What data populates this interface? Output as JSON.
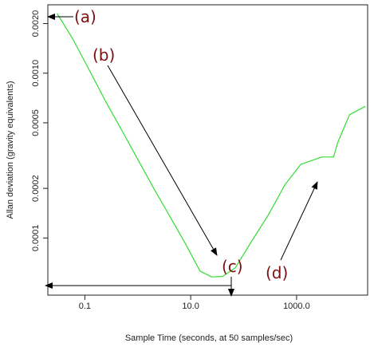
{
  "chart_data": {
    "type": "line",
    "title": "",
    "xlabel": "Sample Time (seconds, at 50 samples/sec)",
    "ylabel": "Allan deviation (gravity equivalents)",
    "x_scale": "log",
    "y_scale": "log",
    "xlim": [
      0.02,
      22000
    ],
    "ylim": [
      4.5e-05,
      0.0026
    ],
    "grid": false,
    "legend": "none",
    "x_ticks": [
      {
        "value": 0.1,
        "label": "0.1"
      },
      {
        "value": 10,
        "label": "10.0"
      },
      {
        "value": 1000,
        "label": "1000.0"
      }
    ],
    "y_ticks": [
      {
        "value": 0.0001,
        "label": "0.0001"
      },
      {
        "value": 0.0002,
        "label": "0.0002"
      },
      {
        "value": 0.0005,
        "label": "0.0005"
      },
      {
        "value": 0.001,
        "label": "0.0010"
      },
      {
        "value": 0.002,
        "label": "0.0020"
      }
    ],
    "series": [
      {
        "color": "#33dd33",
        "x": [
          0.03,
          0.06,
          0.12,
          0.25,
          0.5,
          1.0,
          2.0,
          4.0,
          8.0,
          15.0,
          25.0,
          40.0,
          70.0,
          140.0,
          300.0,
          600.0,
          1200.0,
          3000.0,
          5000.0,
          6000.0,
          10000.0,
          20000.0
        ],
        "y": [
          0.0023,
          0.0016,
          0.00105,
          0.00067,
          0.00045,
          0.0003,
          0.0002,
          0.000136,
          9.2e-05,
          6.3e-05,
          5.8e-05,
          5.85e-05,
          6.6e-05,
          9.5e-05,
          0.00014,
          0.00021,
          0.00028,
          0.00031,
          0.00031,
          0.00038,
          0.00056,
          0.00063
        ]
      }
    ],
    "annotations": [
      {
        "label": "(a)",
        "x": 0.03,
        "y": 0.0023
      },
      {
        "label": "(b)",
        "x": 0.5,
        "y": 0.00095
      },
      {
        "label": "(c)",
        "x": 30,
        "y": 5.85e-05
      },
      {
        "label": "(d)",
        "x": 1000,
        "y": 0.00023
      }
    ]
  },
  "colors": {
    "series": "#33dd33",
    "arrows": "#000000",
    "annotations": "#7a1010",
    "axes": "#222222"
  }
}
